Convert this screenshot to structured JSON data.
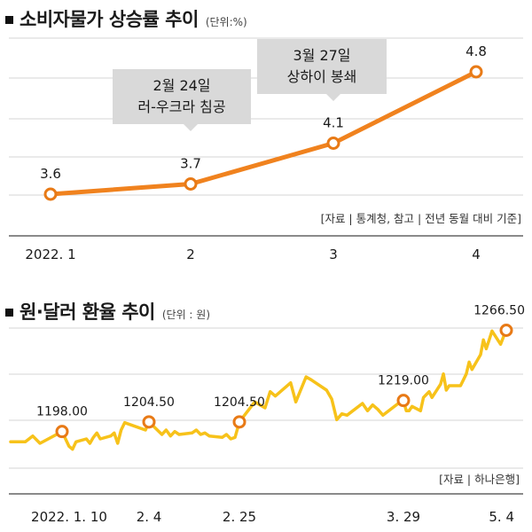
{
  "panel1": {
    "title": "소비자물가 상승률 추이",
    "unit": "(단위:%)",
    "source": "[자료 | 통계청, 참고 | 전년 동월 대비 기준]"
  },
  "panel2": {
    "title": "원·달러 환율 추이",
    "unit": "(단위 : 원)",
    "source": "[자료 | 하나은행]"
  },
  "colors": {
    "cpi_line": "#f0821e",
    "fx_line": "#f7c21a",
    "marker_stroke": "#e87a16",
    "callout_bg": "#d9d9d9",
    "grid": "#d6d6d6"
  },
  "chart_data": [
    {
      "type": "line",
      "title": "소비자물가 상승률 추이",
      "unit": "(단위:%)",
      "categories": [
        "2022. 1",
        "2",
        "3",
        "4"
      ],
      "values": [
        3.6,
        3.7,
        4.1,
        4.8
      ],
      "data_labels": [
        "3.6",
        "3.7",
        "4.1",
        "4.8"
      ],
      "ylim": [
        3.2,
        5.2
      ],
      "grid": "horizontal",
      "annotations": [
        {
          "lines": [
            "2월 24일",
            "러-우크라 침공"
          ],
          "category": "2"
        },
        {
          "lines": [
            "3월 27일",
            "상하이 봉쇄"
          ],
          "category": "3"
        }
      ]
    },
    {
      "type": "line",
      "title": "원·달러 환율 추이",
      "unit": "(단위 : 원)",
      "x_labels": [
        "2022. 1. 10",
        "2. 4",
        "2. 25",
        "3. 29",
        "5. 4"
      ],
      "ylim": [
        1160,
        1280
      ],
      "grid": "horizontal",
      "series": [
        {
          "x": [
            "2022-01-03",
            "2022-01-04",
            "2022-01-05",
            "2022-01-06",
            "2022-01-07",
            "2022-01-10",
            "2022-01-11",
            "2022-01-12",
            "2022-01-13",
            "2022-01-14",
            "2022-01-17",
            "2022-01-18",
            "2022-01-19",
            "2022-01-20",
            "2022-01-21",
            "2022-01-24",
            "2022-01-25",
            "2022-01-26",
            "2022-01-27",
            "2022-01-28",
            "2022-02-03",
            "2022-02-04",
            "2022-02-07",
            "2022-02-08",
            "2022-02-09",
            "2022-02-10",
            "2022-02-11",
            "2022-02-14",
            "2022-02-15",
            "2022-02-16",
            "2022-02-17",
            "2022-02-18",
            "2022-02-21",
            "2022-02-22",
            "2022-02-23",
            "2022-02-24",
            "2022-02-25",
            "2022-02-28",
            "2022-03-02",
            "2022-03-03",
            "2022-03-04",
            "2022-03-07",
            "2022-03-08",
            "2022-03-10",
            "2022-03-11",
            "2022-03-14",
            "2022-03-15",
            "2022-03-16",
            "2022-03-17",
            "2022-03-18",
            "2022-03-21",
            "2022-03-22",
            "2022-03-23",
            "2022-03-24",
            "2022-03-25",
            "2022-03-28",
            "2022-03-29",
            "2022-03-30",
            "2022-03-31",
            "2022-04-01",
            "2022-04-04",
            "2022-04-05",
            "2022-04-06",
            "2022-04-07",
            "2022-04-08",
            "2022-04-11",
            "2022-04-12",
            "2022-04-13",
            "2022-04-14",
            "2022-04-15",
            "2022-04-18",
            "2022-04-19",
            "2022-04-20",
            "2022-04-21",
            "2022-04-22",
            "2022-04-25",
            "2022-04-26",
            "2022-04-27",
            "2022-04-28",
            "2022-04-29",
            "2022-05-02",
            "2022-05-03",
            "2022-05-04"
          ],
          "values": [
            1191,
            1191,
            1191,
            1195,
            1190,
            1198,
            1193,
            1188,
            1186,
            1191,
            1193,
            1190,
            1194,
            1197,
            1193,
            1195,
            1197,
            1190,
            1199,
            1204,
            1199,
            1204.5,
            1196,
            1199,
            1195,
            1198,
            1196,
            1197,
            1199,
            1196,
            1197,
            1195,
            1194,
            1196,
            1193,
            1194,
            1204.5,
            1218,
            1214,
            1225,
            1222,
            1231,
            1218,
            1235,
            1233,
            1226,
            1220,
            1206,
            1210,
            1209,
            1217,
            1212,
            1216,
            1213,
            1209,
            1217,
            1219,
            1212,
            1212,
            1215,
            1212,
            1221,
            1223,
            1225,
            1221,
            1230,
            1237,
            1226,
            1229,
            1229,
            1229,
            1233,
            1237,
            1245,
            1240,
            1250,
            1260,
            1254,
            1260,
            1266,
            1257,
            1262,
            1266.5
          ],
          "labeled_points": [
            {
              "x": "2022-01-10",
              "value": 1198,
              "label": "1198.00"
            },
            {
              "x": "2022-02-04",
              "value": 1204.5,
              "label": "1204.50"
            },
            {
              "x": "2022-02-25",
              "value": 1204.5,
              "label": "1204.50"
            },
            {
              "x": "2022-03-29",
              "value": 1219,
              "label": "1219.00"
            },
            {
              "x": "2022-05-04",
              "value": 1266.5,
              "label": "1266.50"
            }
          ]
        }
      ]
    }
  ]
}
